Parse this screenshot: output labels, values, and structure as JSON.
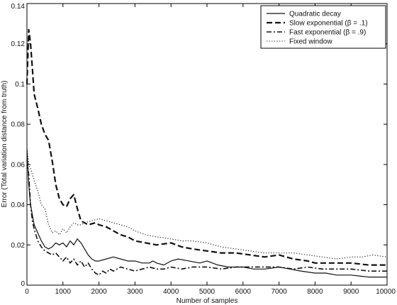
{
  "chart_data": {
    "type": "line",
    "title": "",
    "xlabel": "Number of samples",
    "ylabel": "Error (Total variation distance from truth)",
    "xlim": [
      0,
      10000
    ],
    "ylim": [
      0,
      0.14
    ],
    "xticks": [
      0,
      1000,
      2000,
      3000,
      4000,
      5000,
      6000,
      7000,
      8000,
      9000,
      10000
    ],
    "xtick_labels": [
      "0",
      "1000",
      "2000",
      "3000",
      "4000",
      "5000",
      "6000",
      "7000",
      "8000",
      "9000",
      "10000"
    ],
    "yticks": [
      0,
      0.02,
      0.04,
      0.06,
      0.08,
      0.1,
      0.12,
      0.14
    ],
    "ytick_labels": [
      "0",
      "0.02",
      "0.04",
      "0.06",
      "0.08",
      "0.1",
      "0.12",
      "0.14"
    ],
    "grid": false,
    "legend_position": "top-right",
    "series": [
      {
        "name": "Quadratic decay",
        "style": "solid",
        "color": "#111111",
        "x": [
          0,
          50,
          100,
          150,
          200,
          300,
          400,
          500,
          600,
          700,
          800,
          900,
          1000,
          1100,
          1200,
          1300,
          1400,
          1500,
          1600,
          1700,
          1800,
          1900,
          2000,
          2200,
          2400,
          2600,
          2800,
          3000,
          3200,
          3400,
          3500,
          3600,
          3800,
          4000,
          4200,
          4500,
          4800,
          5000,
          5300,
          5600,
          6000,
          6300,
          6600,
          7000,
          7300,
          7600,
          8000,
          8300,
          8600,
          9000,
          9500,
          10000
        ],
        "y": [
          0.068,
          0.05,
          0.04,
          0.035,
          0.03,
          0.026,
          0.022,
          0.019,
          0.018,
          0.019,
          0.021,
          0.02,
          0.021,
          0.019,
          0.022,
          0.02,
          0.023,
          0.021,
          0.018,
          0.015,
          0.013,
          0.012,
          0.012,
          0.013,
          0.014,
          0.013,
          0.012,
          0.012,
          0.011,
          0.011,
          0.012,
          0.011,
          0.01,
          0.012,
          0.013,
          0.012,
          0.011,
          0.012,
          0.01,
          0.009,
          0.009,
          0.008,
          0.008,
          0.009,
          0.008,
          0.007,
          0.006,
          0.006,
          0.005,
          0.005,
          0.004,
          0.004
        ]
      },
      {
        "name": "Slow exponential (β = .1)",
        "style": "dashed",
        "color": "#111111",
        "x": [
          0,
          50,
          100,
          150,
          200,
          300,
          400,
          500,
          600,
          700,
          800,
          900,
          1000,
          1100,
          1200,
          1300,
          1400,
          1500,
          1700,
          1900,
          2000,
          2200,
          2400,
          2600,
          2800,
          3000,
          3300,
          3600,
          4000,
          4300,
          4600,
          5000,
          5400,
          5800,
          6200,
          6600,
          7000,
          7400,
          7800,
          8000,
          8500,
          9000,
          9500,
          10000
        ],
        "y": [
          0.1,
          0.127,
          0.12,
          0.108,
          0.095,
          0.088,
          0.08,
          0.075,
          0.072,
          0.062,
          0.05,
          0.043,
          0.04,
          0.039,
          0.043,
          0.045,
          0.038,
          0.032,
          0.03,
          0.031,
          0.03,
          0.029,
          0.027,
          0.025,
          0.024,
          0.022,
          0.021,
          0.02,
          0.021,
          0.019,
          0.018,
          0.017,
          0.016,
          0.016,
          0.015,
          0.014,
          0.015,
          0.013,
          0.012,
          0.011,
          0.011,
          0.011,
          0.01,
          0.01
        ]
      },
      {
        "name": "Fast exponential (β = .9)",
        "style": "dashdot",
        "color": "#111111",
        "x": [
          0,
          50,
          100,
          150,
          200,
          300,
          400,
          500,
          600,
          700,
          800,
          900,
          1000,
          1100,
          1200,
          1300,
          1400,
          1500,
          1600,
          1700,
          1800,
          1900,
          2000,
          2100,
          2200,
          2300,
          2400,
          2600,
          2800,
          3000,
          3200,
          3400,
          3600,
          3800,
          4000,
          4300,
          4600,
          5000,
          5400,
          5800,
          6200,
          6600,
          7000,
          7400,
          7800,
          8200,
          8600,
          9000,
          9500,
          10000
        ],
        "y": [
          0.062,
          0.055,
          0.04,
          0.032,
          0.028,
          0.022,
          0.019,
          0.017,
          0.016,
          0.015,
          0.016,
          0.014,
          0.012,
          0.014,
          0.011,
          0.013,
          0.01,
          0.012,
          0.009,
          0.011,
          0.008,
          0.006,
          0.005,
          0.007,
          0.006,
          0.008,
          0.007,
          0.009,
          0.008,
          0.007,
          0.008,
          0.009,
          0.008,
          0.008,
          0.009,
          0.008,
          0.009,
          0.009,
          0.008,
          0.009,
          0.009,
          0.009,
          0.009,
          0.008,
          0.009,
          0.008,
          0.008,
          0.008,
          0.007,
          0.007
        ]
      },
      {
        "name": "Fixed window",
        "style": "dotted",
        "color": "#111111",
        "x": [
          0,
          50,
          100,
          150,
          200,
          300,
          400,
          500,
          600,
          700,
          800,
          900,
          1000,
          1100,
          1200,
          1300,
          1400,
          1500,
          1600,
          1800,
          2000,
          2200,
          2400,
          2600,
          2800,
          3000,
          3300,
          3600,
          4000,
          4300,
          4600,
          5000,
          5400,
          5800,
          6200,
          6600,
          7000,
          7400,
          7800,
          8200,
          8600,
          9000,
          9300,
          9600,
          10000
        ],
        "y": [
          0.068,
          0.06,
          0.058,
          0.055,
          0.052,
          0.047,
          0.04,
          0.038,
          0.03,
          0.026,
          0.027,
          0.025,
          0.028,
          0.026,
          0.029,
          0.031,
          0.03,
          0.03,
          0.031,
          0.032,
          0.033,
          0.032,
          0.031,
          0.03,
          0.029,
          0.027,
          0.025,
          0.024,
          0.023,
          0.022,
          0.022,
          0.021,
          0.019,
          0.018,
          0.017,
          0.016,
          0.016,
          0.016,
          0.015,
          0.014,
          0.013,
          0.014,
          0.014,
          0.015,
          0.014
        ]
      }
    ]
  }
}
